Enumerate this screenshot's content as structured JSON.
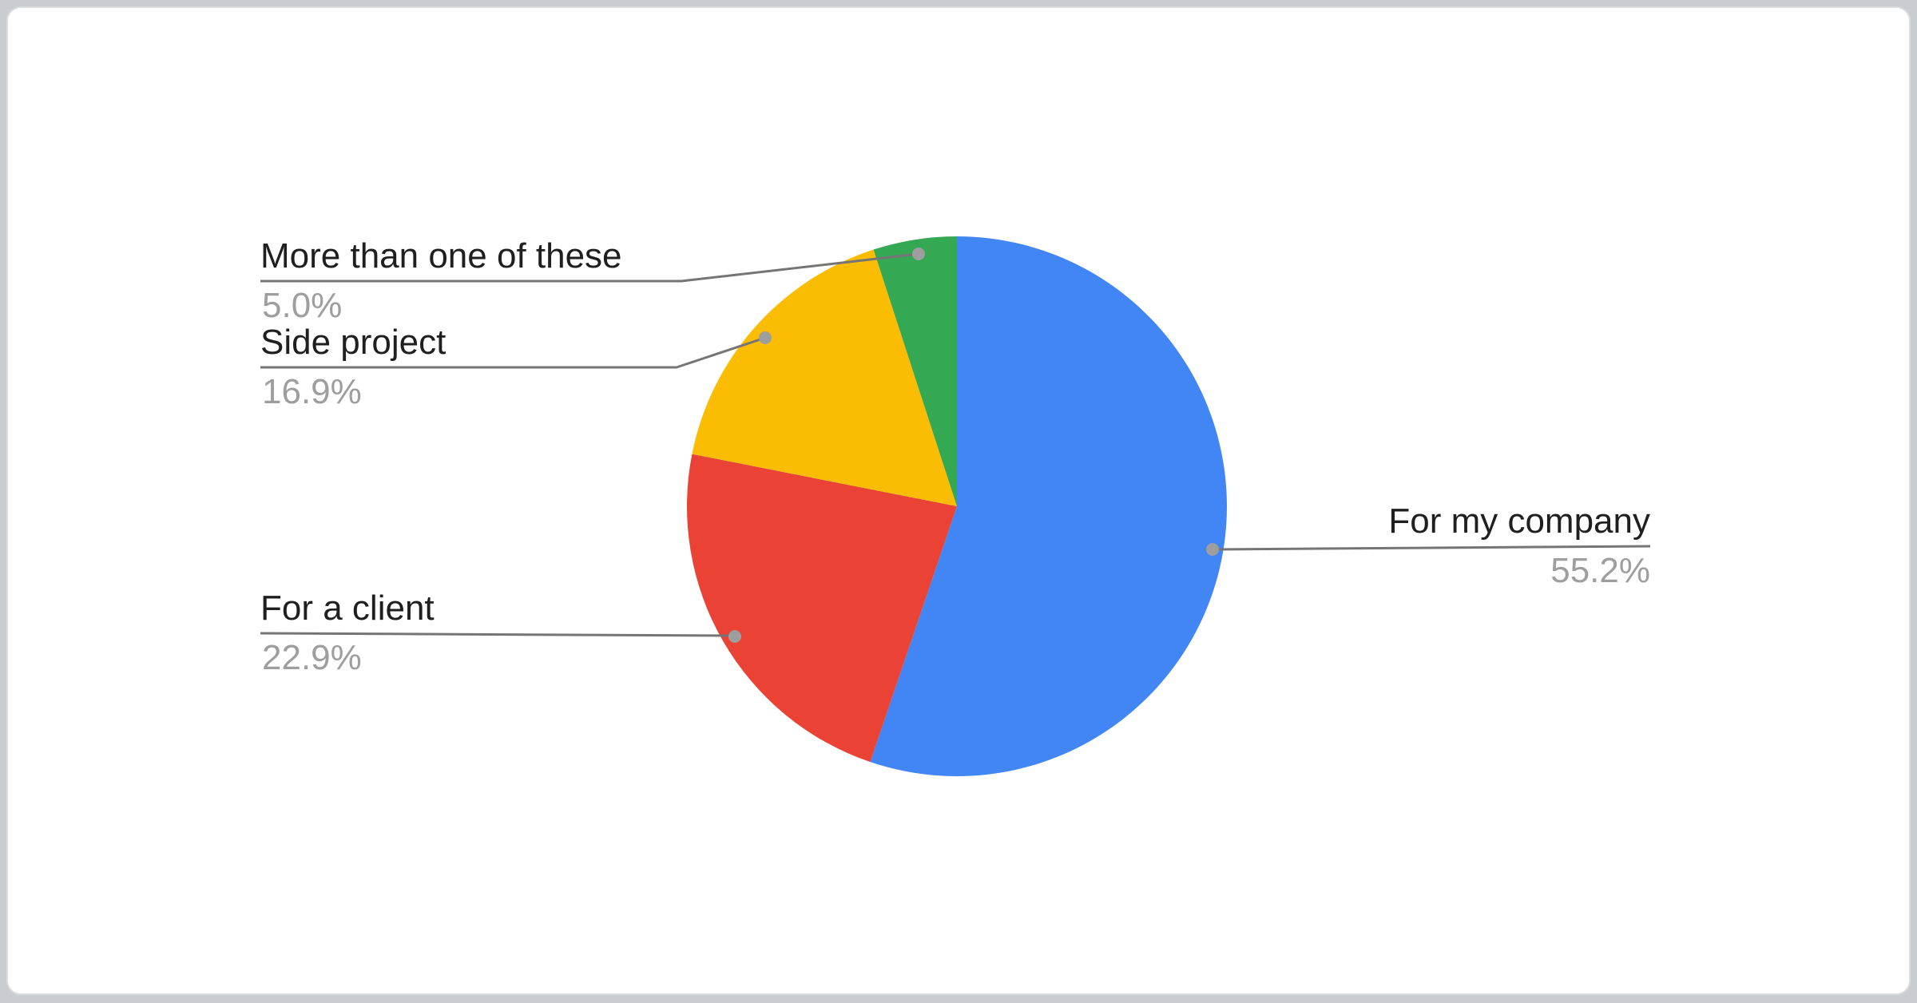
{
  "chart_data": {
    "type": "pie",
    "title": "",
    "start_angle_deg": 0,
    "direction": "clockwise",
    "total": 100.0,
    "slices": [
      {
        "label": "For my company",
        "value": 55.2,
        "display": "55.2%",
        "color": "#4285F4"
      },
      {
        "label": "For a client",
        "value": 22.9,
        "display": "22.9%",
        "color": "#EA4335"
      },
      {
        "label": "Side project",
        "value": 16.9,
        "display": "16.9%",
        "color": "#FBBC04"
      },
      {
        "label": "More than one of these",
        "value": 5.0,
        "display": "5.0%",
        "color": "#34A853"
      }
    ],
    "legend_position": "outside-labels-with-leader-lines",
    "colors": {
      "label_text": "#1f1f1f",
      "percent_text": "#9e9e9e",
      "leader_line": "#757575",
      "leader_dot": "#9e9e9e",
      "card_background": "#ffffff",
      "card_border": "#dadce0",
      "page_background": "#c9cdd2"
    }
  }
}
